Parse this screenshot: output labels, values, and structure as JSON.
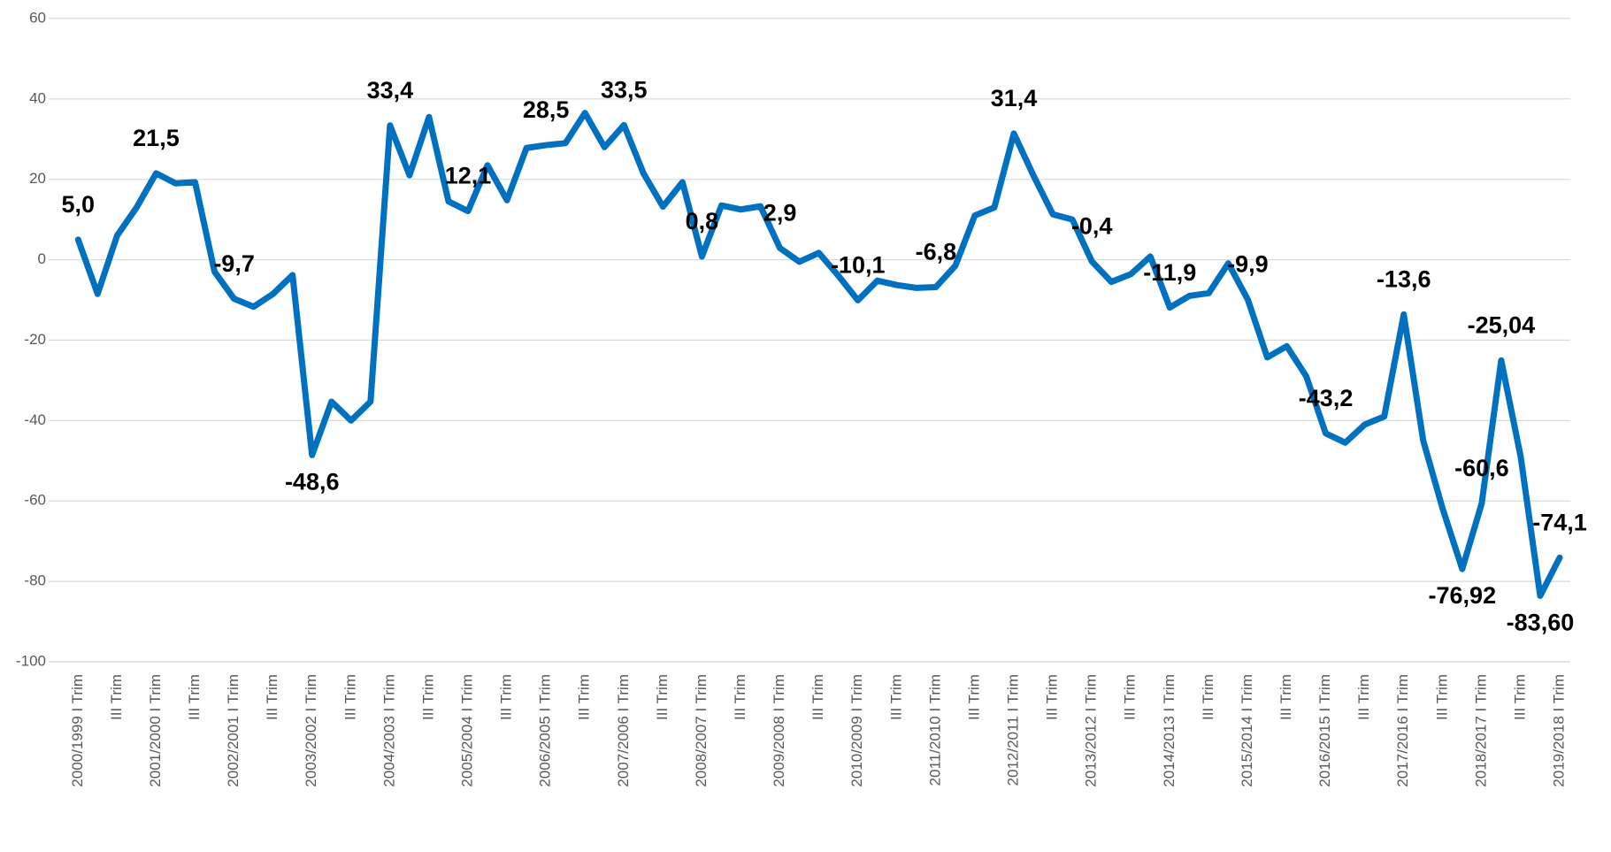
{
  "chart_data": {
    "type": "line",
    "categories": [
      "2000/1999 I Trim",
      null,
      "III Trim",
      null,
      "2001/2000 I Trim",
      null,
      "III Trim",
      null,
      "2002/2001 I Trim",
      null,
      "III Trim",
      null,
      "2003/2002 I Trim",
      null,
      "III Trim",
      null,
      "2004/2003 I Trim",
      null,
      "III Trim",
      null,
      "2005/2004 I Trim",
      null,
      "III Trim",
      null,
      "2006/2005 I Trim",
      null,
      "III Trim",
      null,
      "2007/2006 I Trim",
      null,
      "III Trim",
      null,
      "2008/2007 I Trim",
      null,
      "III Trim",
      null,
      "2009/2008 I Trim",
      null,
      "III Trim",
      null,
      "2010/2009 I Trim",
      null,
      "III Trim",
      null,
      "2011/2010 I Trim",
      null,
      "III Trim",
      null,
      "2012/2011 I Trim",
      null,
      "III Trim",
      null,
      "2013/2012 I Trim",
      null,
      "III Trim",
      null,
      "2014/2013 I Trim",
      null,
      "III Trim",
      null,
      "2015/2014 I Trim",
      null,
      "III Trim",
      null,
      "2016/2015 I Trim",
      null,
      "III Trim",
      null,
      "2017/2016 I Trim",
      null,
      "III Trim",
      null,
      "2018/2017 I Trim",
      null,
      "III Trim",
      null,
      "2019/2018 I Trim"
    ],
    "series": [
      {
        "color": "#0070c0",
        "values": [
          5.0,
          -8.5,
          6,
          13,
          21.5,
          19,
          19.3,
          -3,
          -9.7,
          -11.7,
          -8.5,
          -3.8,
          -48.6,
          -35.3,
          -40,
          -35.3,
          33.4,
          21,
          35.5,
          14.5,
          12.1,
          23.5,
          14.8,
          27.8,
          28.5,
          29,
          36.5,
          28,
          33.5,
          21.5,
          13.2,
          19.3,
          0.8,
          13.5,
          12.5,
          13.3,
          2.9,
          -0.5,
          1.7,
          -4,
          -10.1,
          -5.2,
          -6.3,
          -7,
          -6.8,
          -1.5,
          11,
          13,
          31.4,
          21,
          11.3,
          10,
          -0.4,
          -5.5,
          -3.6,
          0.8,
          -11.9,
          -9,
          -8.3,
          -0.9,
          -9.9,
          -24.3,
          -21.5,
          -29,
          -43.2,
          -45.5,
          -41,
          -39,
          -13.6,
          -45,
          -62,
          -76.92,
          -60.6,
          -25.04,
          -49,
          -83.6,
          -74.1
        ],
        "value_labels": [
          "5,0",
          null,
          null,
          null,
          "21,5",
          null,
          null,
          null,
          "-9,7",
          null,
          null,
          null,
          "-48,6",
          null,
          null,
          null,
          "33,4",
          null,
          null,
          null,
          "12,1",
          null,
          null,
          null,
          "28,5",
          null,
          null,
          null,
          "33,5",
          null,
          null,
          null,
          "0,8",
          null,
          null,
          null,
          "2,9",
          null,
          null,
          null,
          "-10,1",
          null,
          null,
          null,
          "-6,8",
          null,
          null,
          null,
          "31,4",
          null,
          null,
          null,
          "-0,4",
          null,
          null,
          null,
          "-11,9",
          null,
          null,
          null,
          "-9,9",
          null,
          null,
          null,
          "-43,2",
          null,
          null,
          null,
          "-13,6",
          null,
          null,
          "-76,92",
          "-60,6",
          "-25,04",
          null,
          "-83,60",
          "-74,1"
        ]
      }
    ],
    "ylim": [
      -100,
      60
    ],
    "yticks": [
      -100,
      -80,
      -60,
      -40,
      -20,
      0,
      20,
      40,
      60
    ],
    "grid": true
  }
}
